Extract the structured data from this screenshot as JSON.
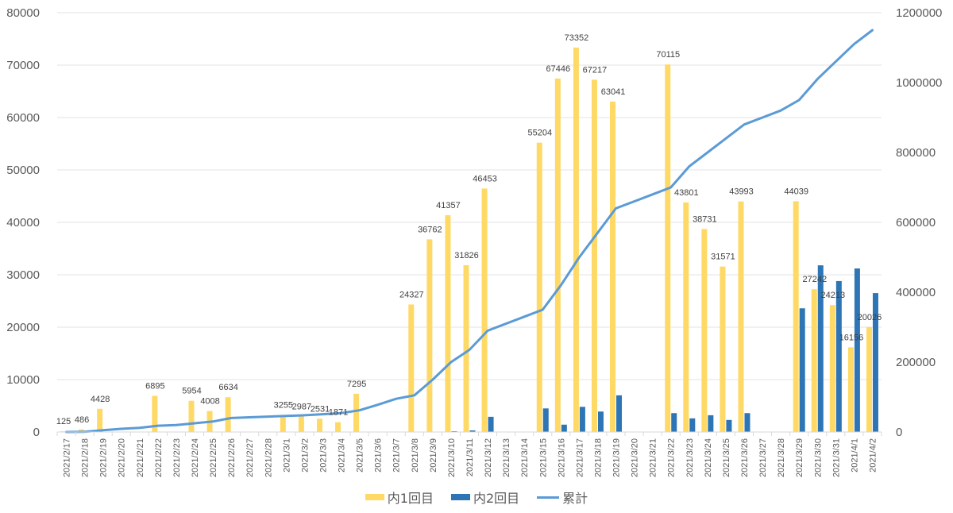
{
  "chart_data": {
    "type": "bar",
    "title": "",
    "xlabel": "",
    "ylabel": "",
    "ylabel_right": "",
    "ylim": [
      0,
      80000
    ],
    "ylim_right": [
      0,
      1200000
    ],
    "yticks": [
      "0",
      "10000",
      "20000",
      "30000",
      "40000",
      "50000",
      "60000",
      "70000",
      "80000"
    ],
    "yticks_right": [
      "0",
      "200000",
      "400000",
      "600000",
      "800000",
      "1000000",
      "1200000"
    ],
    "grid": true,
    "legend_position": "bottom",
    "categories": [
      "2021/2/17",
      "2021/2/18",
      "2021/2/19",
      "2021/2/20",
      "2021/2/21",
      "2021/2/22",
      "2021/2/23",
      "2021/2/24",
      "2021/2/25",
      "2021/2/26",
      "2021/2/27",
      "2021/2/28",
      "2021/3/1",
      "2021/3/2",
      "2021/3/3",
      "2021/3/4",
      "2021/3/5",
      "2021/3/6",
      "2021/3/7",
      "2021/3/8",
      "2021/3/9",
      "2021/3/10",
      "2021/3/11",
      "2021/3/12",
      "2021/3/13",
      "2021/3/14",
      "2021/3/15",
      "2021/3/16",
      "2021/3/17",
      "2021/3/18",
      "2021/3/19",
      "2021/3/20",
      "2021/3/21",
      "2021/3/22",
      "2021/3/23",
      "2021/3/24",
      "2021/3/25",
      "2021/3/26",
      "2021/3/27",
      "2021/3/28",
      "2021/3/29",
      "2021/3/30",
      "2021/3/31",
      "2021/4/1",
      "2021/4/2"
    ],
    "series": [
      {
        "name": "内1回目",
        "type": "bar",
        "axis": "left",
        "color": "#FFD966",
        "values": [
          125,
          486,
          4428,
          0,
          0,
          6895,
          0,
          5954,
          4008,
          6634,
          0,
          0,
          3255,
          2987,
          2531,
          1871,
          7295,
          0,
          0,
          24327,
          36762,
          41357,
          31826,
          46453,
          0,
          0,
          55204,
          67446,
          73352,
          67217,
          63041,
          0,
          0,
          70115,
          43801,
          38731,
          31571,
          43993,
          0,
          0,
          44039,
          27242,
          24213,
          16156,
          20026
        ],
        "labels": [
          "125",
          "486",
          "4428",
          "",
          "",
          "6895",
          "",
          "5954",
          "4008",
          "6634",
          "",
          "",
          "3255",
          "2987",
          "2531",
          "1871",
          "7295",
          "",
          "",
          "24327",
          "36762",
          "41357",
          "31826",
          "46453",
          "",
          "",
          "55204",
          "67446",
          "73352",
          "67217",
          "63041",
          "",
          "",
          "70115",
          "43801",
          "38731",
          "31571",
          "43993",
          "",
          "",
          "44039",
          "27242",
          "24213",
          "16156",
          "20026"
        ]
      },
      {
        "name": "内2回目",
        "type": "bar",
        "axis": "left",
        "color": "#2E75B6",
        "values": [
          0,
          0,
          0,
          0,
          0,
          0,
          0,
          0,
          0,
          0,
          0,
          0,
          0,
          0,
          0,
          0,
          0,
          0,
          0,
          0,
          0,
          150,
          300,
          2900,
          0,
          0,
          4500,
          1400,
          4800,
          3900,
          7000,
          0,
          0,
          3600,
          2600,
          3200,
          2300,
          3600,
          0,
          0,
          23600,
          31800,
          28800,
          31200,
          26500
        ]
      },
      {
        "name": "累計",
        "type": "line",
        "axis": "right",
        "color": "#5B9BD5",
        "values": [
          0,
          600,
          5000,
          9000,
          12000,
          18000,
          20000,
          25000,
          30000,
          40000,
          42000,
          44000,
          46000,
          48000,
          51000,
          54000,
          62000,
          78000,
          95000,
          105000,
          150000,
          200000,
          235000,
          290000,
          310000,
          330000,
          350000,
          420000,
          500000,
          570000,
          640000,
          660000,
          680000,
          700000,
          760000,
          800000,
          840000,
          880000,
          900000,
          920000,
          950000,
          1010000,
          1060000,
          1110000,
          1150000
        ]
      }
    ]
  },
  "legend": {
    "items": [
      {
        "label": "内1回目",
        "color": "#FFD966",
        "kind": "bar"
      },
      {
        "label": "内2回目",
        "color": "#2E75B6",
        "kind": "bar"
      },
      {
        "label": "累計",
        "color": "#5B9BD5",
        "kind": "line"
      }
    ]
  }
}
